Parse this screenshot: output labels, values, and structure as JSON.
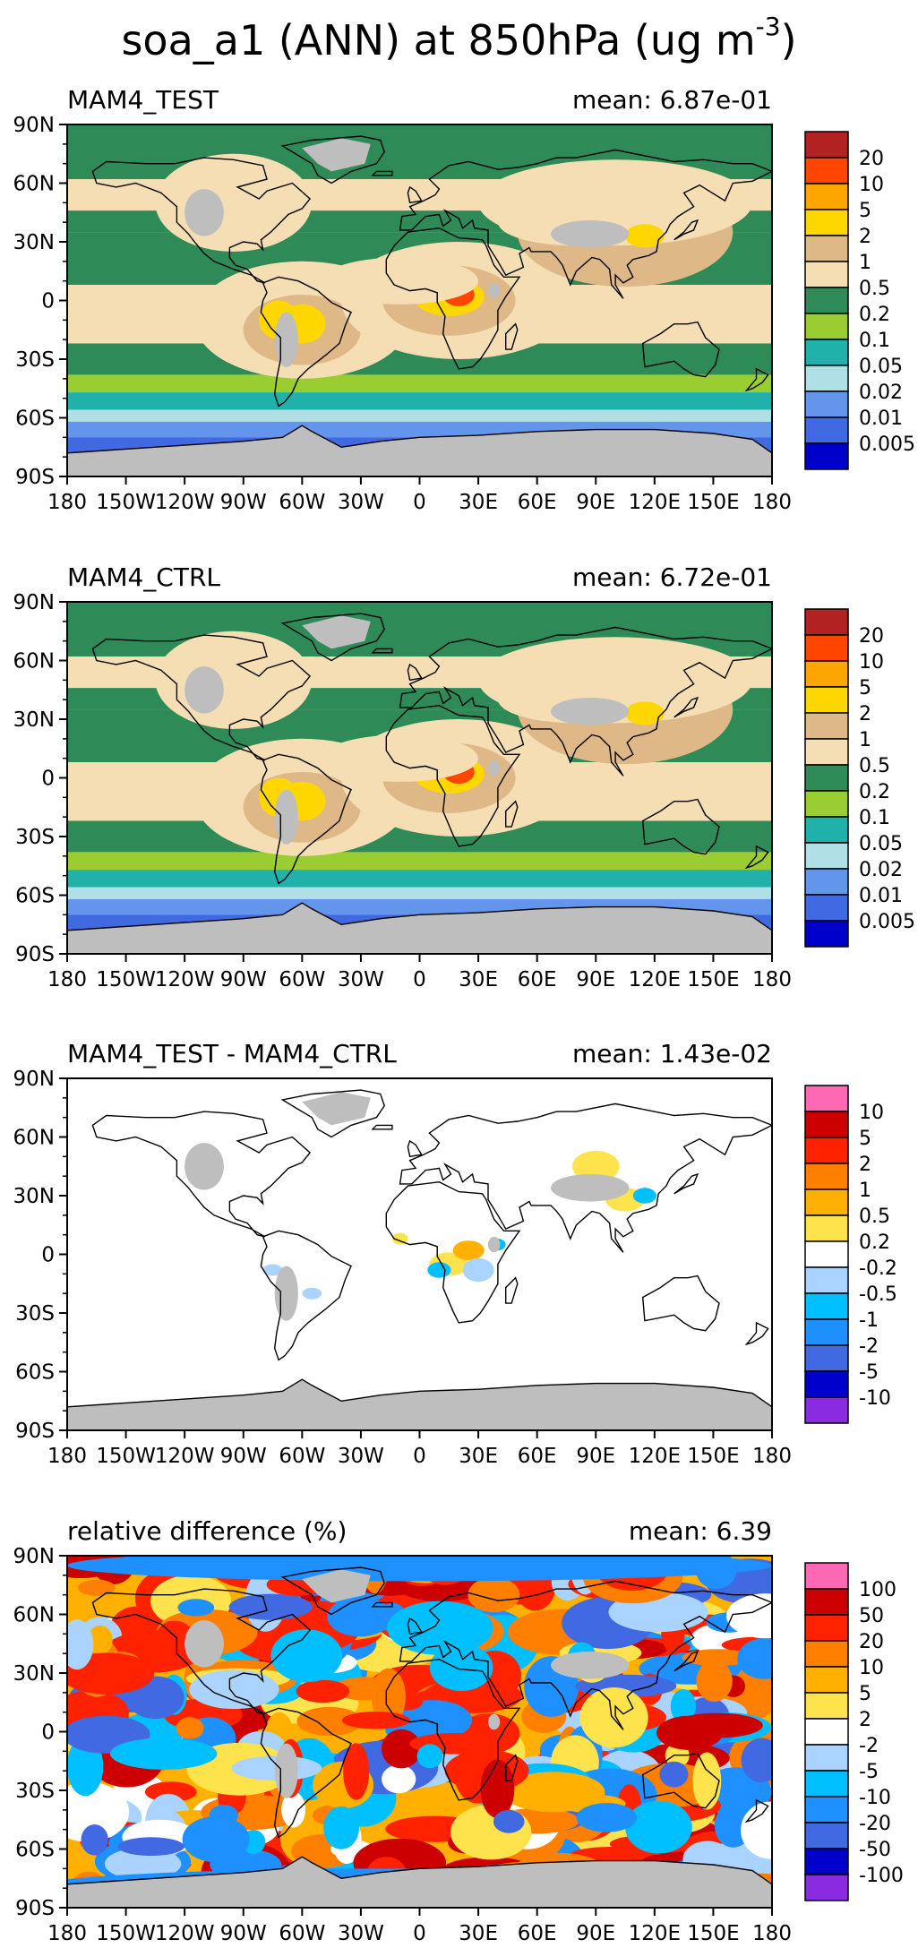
{
  "title": {
    "main": "soa_a1 (ANN) at 850hPa (ug m",
    "unit_exp": "-3",
    "close": ")"
  },
  "lat_labels": [
    "90N",
    "60N",
    "30N",
    "0",
    "30S",
    "60S",
    "90S"
  ],
  "lon_labels": [
    "180",
    "150W",
    "120W",
    "90W",
    "60W",
    "30W",
    "0",
    "30E",
    "60E",
    "90E",
    "120E",
    "150E",
    "180"
  ],
  "colors": {
    "land_missing": "#bebebe",
    "coast": "#000000"
  },
  "panels": [
    {
      "title": "MAM4_TEST",
      "mean": "mean: 6.87e-01",
      "colorbar": {
        "labels": [
          "20",
          "10",
          "5",
          "2",
          "1",
          "0.5",
          "0.2",
          "0.1",
          "0.05",
          "0.02",
          "0.01",
          "0.005"
        ],
        "colors": [
          "#b22222",
          "#ff4500",
          "#ffa500",
          "#ffd700",
          "#deb887",
          "#f5deb3",
          "#2e8b57",
          "#9acd32",
          "#20b2aa",
          "#b0e0e6",
          "#6495ed",
          "#4169e1",
          "#0000cd"
        ]
      }
    },
    {
      "title": "MAM4_CTRL",
      "mean": "mean: 6.72e-01",
      "colorbar": {
        "labels": [
          "20",
          "10",
          "5",
          "2",
          "1",
          "0.5",
          "0.2",
          "0.1",
          "0.05",
          "0.02",
          "0.01",
          "0.005"
        ],
        "colors": [
          "#b22222",
          "#ff4500",
          "#ffa500",
          "#ffd700",
          "#deb887",
          "#f5deb3",
          "#2e8b57",
          "#9acd32",
          "#20b2aa",
          "#b0e0e6",
          "#6495ed",
          "#4169e1",
          "#0000cd"
        ]
      }
    },
    {
      "title": "MAM4_TEST - MAM4_CTRL",
      "mean": "mean: 1.43e-02",
      "colorbar": {
        "labels": [
          "10",
          "5",
          "2",
          "1",
          "0.5",
          "0.2",
          "-0.2",
          "-0.5",
          "-1",
          "-2",
          "-5",
          "-10"
        ],
        "colors": [
          "#ff69b4",
          "#cc0000",
          "#ff2200",
          "#ff7f00",
          "#ffb000",
          "#ffe34d",
          "#ffffff",
          "#aad4ff",
          "#00bfff",
          "#1e90ff",
          "#4169e1",
          "#0000cd",
          "#8a2be2"
        ]
      }
    },
    {
      "title": "relative difference (%)",
      "mean": "mean:  6.39",
      "colorbar": {
        "labels": [
          "100",
          "50",
          "20",
          "10",
          "5",
          "2",
          "-2",
          "-5",
          "-10",
          "-20",
          "-50",
          "-100"
        ],
        "colors": [
          "#ff69b4",
          "#cc0000",
          "#ff2200",
          "#ff7f00",
          "#ffb000",
          "#ffe34d",
          "#ffffff",
          "#aad4ff",
          "#00bfff",
          "#1e90ff",
          "#4169e1",
          "#0000cd",
          "#8a2be2"
        ]
      }
    }
  ]
}
